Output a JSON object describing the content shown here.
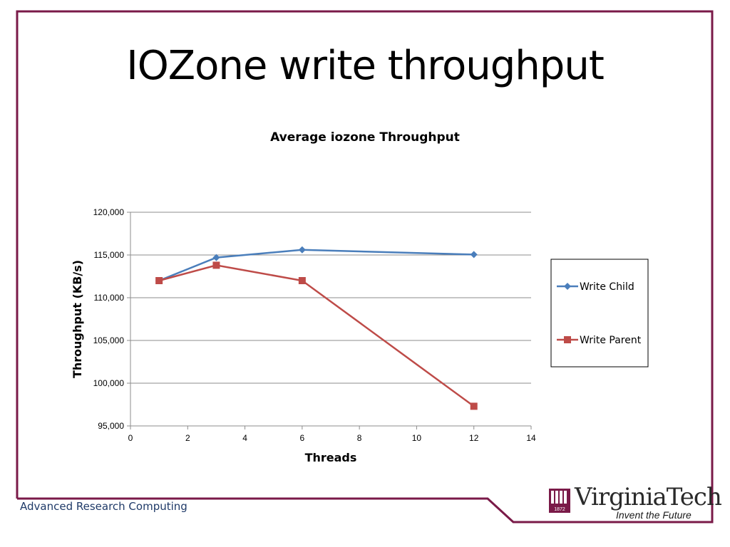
{
  "slide": {
    "title": "IOZone write throughput",
    "footer": "Advanced Research Computing",
    "logo": {
      "wordmark": "VirginiaTech",
      "tagline": "Invent the Future",
      "seal_year": "1872",
      "icon": "seal-icon"
    },
    "colors": {
      "frame": "#7a1a48",
      "footer_text": "#1f3a68"
    }
  },
  "chart_data": {
    "type": "line",
    "title": "Average iozone Throughput",
    "xlabel": "Threads",
    "ylabel": "Throughput (KB/s)",
    "xlim": [
      0,
      14
    ],
    "ylim": [
      95000,
      120000
    ],
    "xticks": [
      0,
      2,
      4,
      6,
      8,
      10,
      12,
      14
    ],
    "yticks": [
      95000,
      100000,
      105000,
      110000,
      115000,
      120000
    ],
    "xtick_labels": [
      "0",
      "2",
      "4",
      "6",
      "8",
      "10",
      "12",
      "14"
    ],
    "ytick_labels": [
      "95,000",
      "100,000",
      "105,000",
      "110,000",
      "115,000",
      "120,000"
    ],
    "grid": "horizontal",
    "legend_position": "right",
    "series": [
      {
        "name": "Write Child",
        "color": "#4a7ebb",
        "marker": "diamond",
        "x": [
          1,
          3,
          6,
          12
        ],
        "y": [
          112000,
          114700,
          115600,
          115050
        ]
      },
      {
        "name": "Write Parent",
        "color": "#be4b48",
        "marker": "square",
        "x": [
          1,
          3,
          6,
          12
        ],
        "y": [
          112000,
          113800,
          112000,
          97300
        ]
      }
    ]
  }
}
